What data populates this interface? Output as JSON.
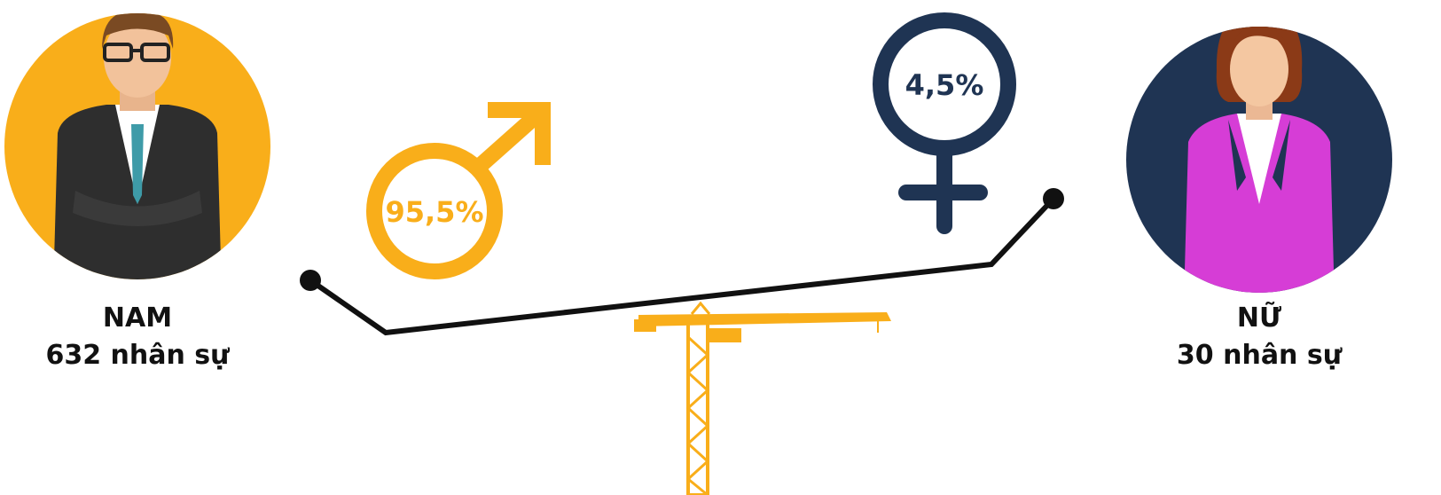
{
  "male": {
    "label": "NAM",
    "count": "632 nhân sự",
    "percent": "95,5%"
  },
  "female": {
    "label": "NỮ",
    "count": "30 nhân sự",
    "percent": "4,5%"
  }
}
